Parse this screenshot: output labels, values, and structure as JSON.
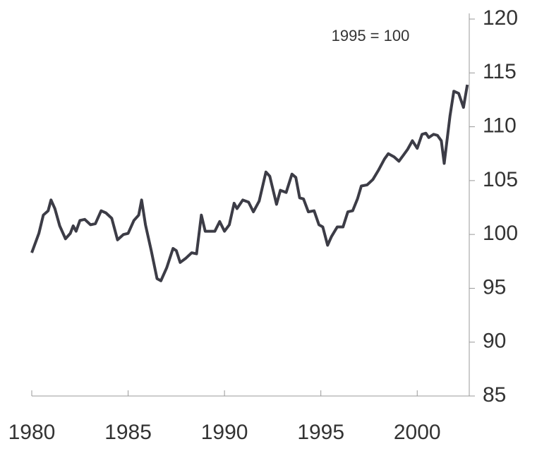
{
  "chart_data": {
    "type": "line",
    "annotation": "1995 = 100",
    "x": [
      1980.0,
      1980.37,
      1980.6,
      1980.85,
      1981.0,
      1981.2,
      1981.45,
      1981.75,
      1982.0,
      1982.15,
      1982.3,
      1982.5,
      1982.75,
      1983.05,
      1983.3,
      1983.6,
      1983.85,
      1984.15,
      1984.45,
      1984.76,
      1985.0,
      1985.3,
      1985.55,
      1985.7,
      1985.9,
      1986.2,
      1986.5,
      1986.7,
      1987.0,
      1987.33,
      1987.5,
      1987.7,
      1988.0,
      1988.3,
      1988.55,
      1988.8,
      1989.0,
      1989.25,
      1989.5,
      1989.75,
      1990.0,
      1990.25,
      1990.5,
      1990.65,
      1990.95,
      1991.25,
      1991.5,
      1991.8,
      1992.15,
      1992.35,
      1992.7,
      1992.9,
      1993.2,
      1993.5,
      1993.7,
      1993.9,
      1994.1,
      1994.35,
      1994.65,
      1994.9,
      1995.1,
      1995.35,
      1995.55,
      1995.85,
      1996.15,
      1996.4,
      1996.65,
      1996.9,
      1997.1,
      1997.4,
      1997.7,
      1998.0,
      1998.3,
      1998.5,
      1998.8,
      1999.05,
      1999.3,
      1999.5,
      1999.75,
      2000.0,
      2000.25,
      2000.45,
      2000.6,
      2000.85,
      2001.05,
      2001.25,
      2001.4,
      2001.7,
      2001.9,
      2002.15,
      2002.4,
      2002.6
    ],
    "series": [
      {
        "color": "#3c3c46",
        "values": [
          98.3,
          100.1,
          101.8,
          102.2,
          103.2,
          102.4,
          100.8,
          99.6,
          100.1,
          100.8,
          100.3,
          101.3,
          101.4,
          100.9,
          101.0,
          102.2,
          102.0,
          101.5,
          99.5,
          100.0,
          100.1,
          101.3,
          101.8,
          103.2,
          100.9,
          98.5,
          95.9,
          95.7,
          96.9,
          98.7,
          98.5,
          97.4,
          97.8,
          98.3,
          98.2,
          101.8,
          100.3,
          100.3,
          100.3,
          101.2,
          100.3,
          100.9,
          102.9,
          102.4,
          103.2,
          103.0,
          102.1,
          103.1,
          105.8,
          105.4,
          102.8,
          104.1,
          103.9,
          105.6,
          105.3,
          103.4,
          103.3,
          102.1,
          102.2,
          100.9,
          100.7,
          99.0,
          99.8,
          100.7,
          100.7,
          102.1,
          102.2,
          103.3,
          104.5,
          104.6,
          105.1,
          106.0,
          107.0,
          107.5,
          107.2,
          106.8,
          107.4,
          107.9,
          108.7,
          108.0,
          109.3,
          109.4,
          109.0,
          109.3,
          109.2,
          108.7,
          106.6,
          111.0,
          113.3,
          113.1,
          111.8,
          113.9
        ]
      }
    ],
    "xlim": [
      1980,
      2002.7
    ],
    "xticks": [
      1980,
      1985,
      1990,
      1995,
      2000
    ],
    "ylim": [
      85,
      120
    ],
    "yticks": [
      85,
      90,
      95,
      100,
      105,
      110,
      115,
      120
    ]
  }
}
